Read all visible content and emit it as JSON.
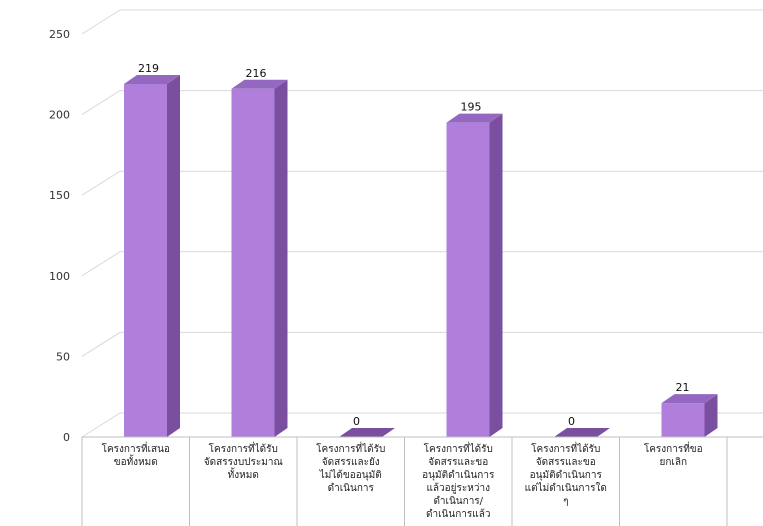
{
  "chart_data": {
    "type": "bar",
    "style": "3d-column",
    "categories": [
      [
        "โครงการที่เสนอ",
        "ขอทั้งหมด"
      ],
      [
        "โครงการที่ได้รับ",
        "จัดสรรงบประมาณ",
        "ทั้งหมด"
      ],
      [
        "โครงการที่ได้รับ",
        "จัดสรรและยัง",
        "ไม่ได้ขออนุมัติ",
        "ดำเนินการ"
      ],
      [
        "โครงการที่ได้รับ",
        "จัดสรรและขอ",
        "อนุมัติดำเนินการ",
        "แล้วอยู่ระหว่าง",
        "ดำเนินการ/",
        "ดำเนินการแล้ว"
      ],
      [
        "โครงการที่ได้รับ",
        "จัดสรรและขอ",
        "อนุมัติดำเนินการ",
        "แต่ไม่ดำเนินการใด",
        "ๆ"
      ],
      [
        "โครงการที่ขอ",
        "ยกเลิก"
      ]
    ],
    "values": [
      219,
      216,
      0,
      195,
      0,
      21
    ],
    "data_labels": [
      "219",
      "216",
      "0",
      "195",
      "0",
      "21"
    ],
    "yticks": [
      0,
      50,
      100,
      150,
      200,
      250
    ],
    "ylim": [
      0,
      250
    ],
    "grid": true,
    "legend": "none",
    "colors": {
      "front": "#b07fdc",
      "side": "#7a4fa0",
      "top": "#9468c0",
      "grid": "#d9d9d9"
    }
  }
}
